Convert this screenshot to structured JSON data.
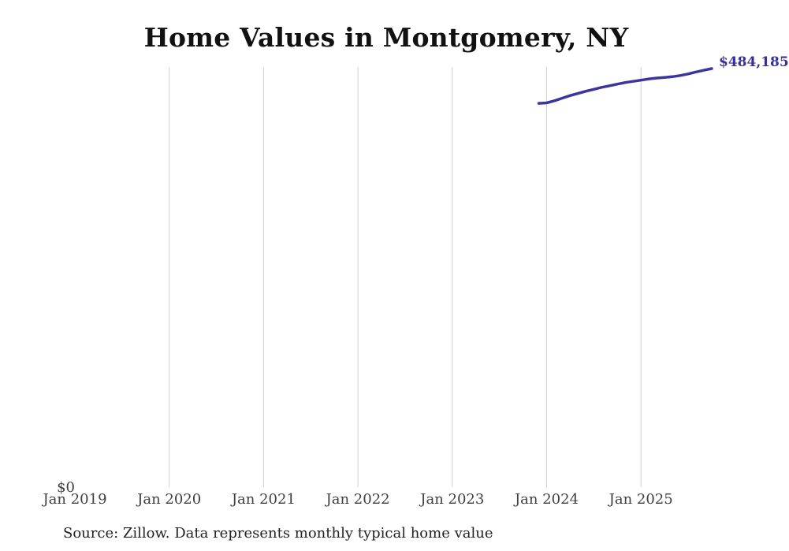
{
  "title": "Home Values in Montgomery, NY",
  "source_note": "Source: Zillow. Data represents monthly typical home value",
  "colors": {
    "line": "#3a35a0",
    "end_label": "#34319b",
    "gridline": "#cfcfcf",
    "axis_label": "#3f3f3f",
    "title": "#111111",
    "source": "#222222"
  },
  "y_axis": {
    "zero_label": "$0"
  },
  "x_axis": {
    "labels": [
      "Jan 2019",
      "Jan 2020",
      "Jan 2021",
      "Jan 2022",
      "Jan 2023",
      "Jan 2024",
      "Jan 2025"
    ]
  },
  "chart_data": {
    "type": "line",
    "title": "Home Values in Montgomery, NY",
    "xlabel": "",
    "ylabel": "",
    "ylim": [
      0,
      484185
    ],
    "x_tick_labels": [
      "Jan 2019",
      "Jan 2020",
      "Jan 2021",
      "Jan 2022",
      "Jan 2023",
      "Jan 2024",
      "Jan 2025"
    ],
    "grid": "vertical-only",
    "legend_position": "none",
    "end_label": "$484,185",
    "series": [
      {
        "name": "Monthly typical home value",
        "points": [
          {
            "month": "2023-12",
            "value": 444000
          },
          {
            "month": "2024-01",
            "value": 444500
          },
          {
            "month": "2024-02",
            "value": 447000
          },
          {
            "month": "2024-03",
            "value": 450000
          },
          {
            "month": "2024-04",
            "value": 453000
          },
          {
            "month": "2024-05",
            "value": 455500
          },
          {
            "month": "2024-06",
            "value": 458000
          },
          {
            "month": "2024-07",
            "value": 460200
          },
          {
            "month": "2024-08",
            "value": 462500
          },
          {
            "month": "2024-09",
            "value": 464300
          },
          {
            "month": "2024-10",
            "value": 466200
          },
          {
            "month": "2024-11",
            "value": 468000
          },
          {
            "month": "2024-12",
            "value": 469400
          },
          {
            "month": "2025-01",
            "value": 470800
          },
          {
            "month": "2025-02",
            "value": 472200
          },
          {
            "month": "2025-03",
            "value": 473200
          },
          {
            "month": "2025-04",
            "value": 474000
          },
          {
            "month": "2025-05",
            "value": 474800
          },
          {
            "month": "2025-06",
            "value": 476200
          },
          {
            "month": "2025-07",
            "value": 478000
          },
          {
            "month": "2025-08",
            "value": 480300
          },
          {
            "month": "2025-09",
            "value": 482300
          },
          {
            "month": "2025-10",
            "value": 484185
          }
        ]
      }
    ]
  }
}
